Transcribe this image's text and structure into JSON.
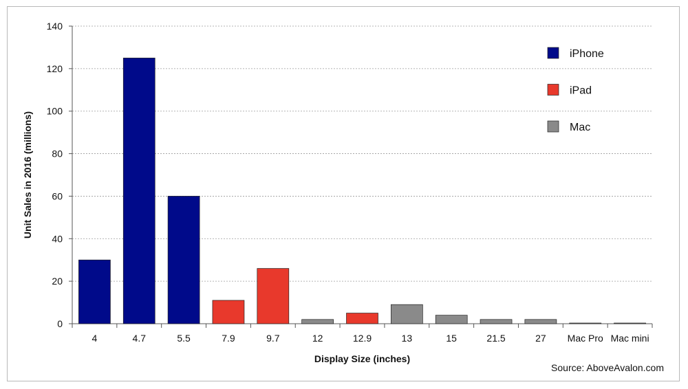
{
  "chart_data": {
    "type": "bar",
    "ylabel": "Unit Sales in 2016 (millions)",
    "xlabel": "Display Size (inches)",
    "ylim": [
      0,
      140
    ],
    "yticks": [
      0,
      20,
      40,
      60,
      80,
      100,
      120,
      140
    ],
    "grid": true,
    "legend_position": "top-right",
    "categories": [
      "4",
      "4.7",
      "5.5",
      "7.9",
      "9.7",
      "12",
      "12.9",
      "13",
      "15",
      "21.5",
      "27",
      "Mac Pro",
      "Mac mini"
    ],
    "values": [
      30,
      125,
      60,
      11,
      26,
      2,
      5,
      9,
      4,
      2,
      2,
      0.3,
      0.3
    ],
    "groups": [
      "iPhone",
      "iPhone",
      "iPhone",
      "iPad",
      "iPad",
      "Mac",
      "iPad",
      "Mac",
      "Mac",
      "Mac",
      "Mac",
      "Mac",
      "Mac"
    ],
    "series": [
      {
        "name": "iPhone",
        "color": "#000a8a"
      },
      {
        "name": "iPad",
        "color": "#e8392c"
      },
      {
        "name": "Mac",
        "color": "#8a8a8a"
      }
    ],
    "source": "Source: AboveAvalon.com"
  }
}
